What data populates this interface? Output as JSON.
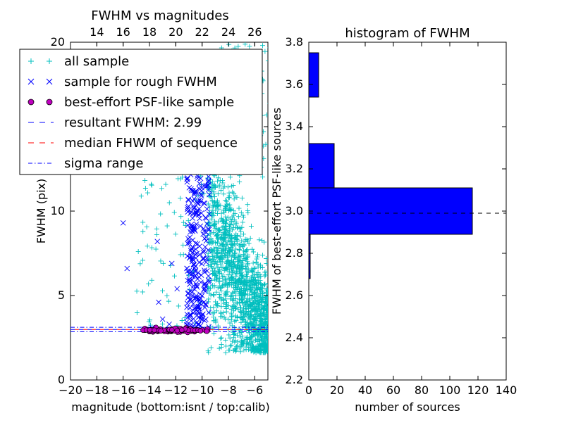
{
  "chart_data": [
    {
      "type": "scatter",
      "title": "FWHM vs magnitudes",
      "xlabel": "magnitude (bottom:isnt / top:calib)",
      "ylabel": "FWHM (pix)",
      "xlim": [
        -20,
        -5
      ],
      "ylim": [
        0,
        20
      ],
      "xticks": [
        -20,
        -18,
        -16,
        -14,
        -12,
        -10,
        -8,
        -6
      ],
      "xtick_labels": [
        "−20",
        "−18",
        "−16",
        "−14",
        "−12",
        "−10",
        "−8",
        "−6"
      ],
      "yticks": [
        0,
        5,
        10,
        15,
        20
      ],
      "ytick_labels": [
        "0",
        "5",
        "10",
        "15",
        "20"
      ],
      "top_xticks": [
        14,
        16,
        18,
        20,
        22,
        24,
        26
      ],
      "top_xtick_labels": [
        "14",
        "16",
        "18",
        "20",
        "22",
        "24",
        "26"
      ],
      "top_axis_offset": 32,
      "legend": {
        "location": "upper-left",
        "entries": [
          {
            "label": "all sample",
            "marker": "+",
            "color": "#00bfbf"
          },
          {
            "label": "sample for rough FWHM",
            "marker": "x",
            "color": "#0000ff"
          },
          {
            "label": "best-effort PSF-like sample",
            "marker": "o",
            "color": "#bf00bf"
          },
          {
            "label": "resultant FWHM: 2.99",
            "linestyle": "dashed",
            "color": "#0000ff"
          },
          {
            "label": "median FHWM of sequence",
            "linestyle": "dashed",
            "color": "#ff0000"
          },
          {
            "label": "sigma range",
            "linestyle": "dashdot",
            "color": "#0000ff"
          }
        ]
      },
      "resultant_fwhm": 2.99,
      "median_fwhm_sequence": 2.99,
      "sigma_range": [
        2.86,
        3.12
      ],
      "series_summary": {
        "all_sample": {
          "x_range": [
            -16,
            -5
          ],
          "y_range": [
            1.5,
            20
          ],
          "note": "dense cloud at magnitude -9.5 to -5"
        },
        "rough_sample": {
          "x_range": [
            -16,
            -9.5
          ],
          "y_range": [
            2.9,
            12
          ]
        },
        "psf_like_sample": {
          "x_range": [
            -14.5,
            -9.5
          ],
          "y_approx": 3.0
        }
      }
    },
    {
      "type": "bar",
      "orientation": "horizontal",
      "title": "histogram of FWHM",
      "xlabel": "number of sources",
      "ylabel": "FWHM of best-effort PSF-like sources",
      "xlim": [
        0,
        140
      ],
      "ylim": [
        2.2,
        3.8
      ],
      "xticks": [
        0,
        20,
        40,
        60,
        80,
        100,
        120,
        140
      ],
      "xtick_labels": [
        "0",
        "20",
        "40",
        "60",
        "80",
        "100",
        "120",
        "140"
      ],
      "yticks": [
        2.2,
        2.4,
        2.6,
        2.8,
        3.0,
        3.2,
        3.4,
        3.6,
        3.8
      ],
      "ytick_labels": [
        "2.2",
        "2.4",
        "2.6",
        "2.8",
        "3.0",
        "3.2",
        "3.4",
        "3.6",
        "3.8"
      ],
      "bins": [
        {
          "y0": 2.68,
          "y1": 2.89,
          "count": 1
        },
        {
          "y0": 2.89,
          "y1": 3.11,
          "count": 116
        },
        {
          "y0": 3.11,
          "y1": 3.32,
          "count": 18
        },
        {
          "y0": 3.32,
          "y1": 3.54,
          "count": 0
        },
        {
          "y0": 3.54,
          "y1": 3.75,
          "count": 7
        }
      ],
      "bar_color": "#0000ff",
      "reference_line": {
        "y": 2.99,
        "style": "dashed",
        "color": "#000000"
      }
    }
  ]
}
